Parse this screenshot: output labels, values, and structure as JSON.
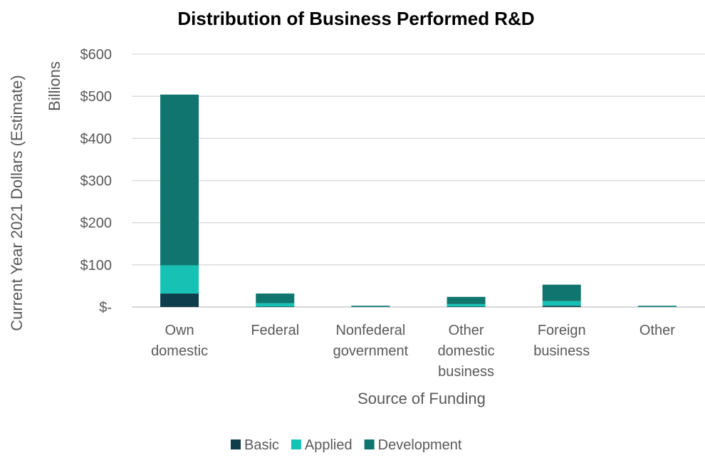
{
  "chart_data": {
    "type": "bar",
    "stacked": true,
    "title": "Distribution of Business Performed R&D",
    "xlabel": "Source of Funding",
    "ylabel": "Current Year 2021 Dollars (Estimate)",
    "y_unit_label": "Billions",
    "ylim": [
      0,
      600
    ],
    "yticks": [
      0,
      100,
      200,
      300,
      400,
      500,
      600
    ],
    "ytick_labels": [
      "$-",
      "$100",
      "$200",
      "$300",
      "$400",
      "$500",
      "$600"
    ],
    "grid": true,
    "legend_position": "bottom",
    "categories": [
      [
        "Own",
        "domestic"
      ],
      [
        "Federal"
      ],
      [
        "Nonfederal",
        "government"
      ],
      [
        "Other",
        "domestic",
        "business"
      ],
      [
        "Foreign",
        "business"
      ],
      [
        "Other"
      ]
    ],
    "series": [
      {
        "name": "Basic",
        "color": "#0e3d4c",
        "values": [
          32,
          1,
          0.3,
          1,
          3,
          0.2
        ]
      },
      {
        "name": "Applied",
        "color": "#17c2b4",
        "values": [
          67,
          8,
          0.5,
          6,
          11,
          0.5
        ]
      },
      {
        "name": "Development",
        "color": "#0f756e",
        "values": [
          405,
          23,
          1,
          17,
          39,
          0.8
        ]
      }
    ]
  }
}
